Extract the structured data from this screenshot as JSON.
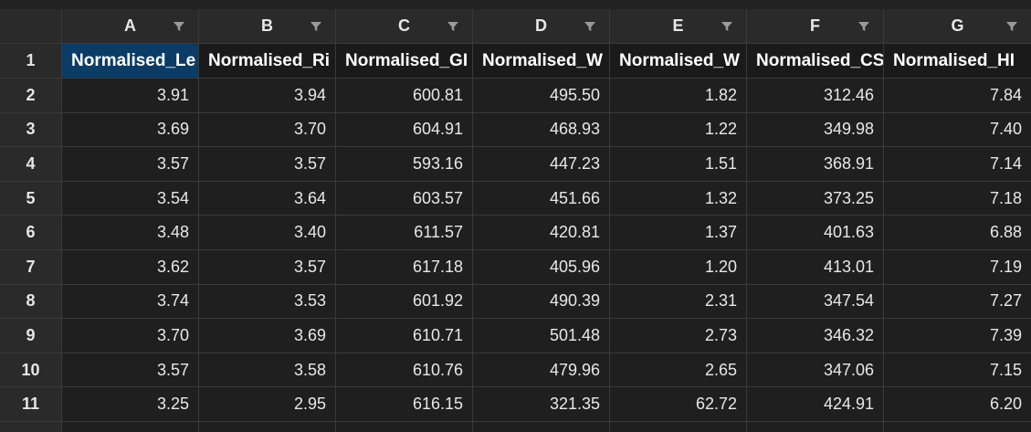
{
  "columns": [
    {
      "letter": "A",
      "header": "Normalised_Le"
    },
    {
      "letter": "B",
      "header": "Normalised_Ri"
    },
    {
      "letter": "C",
      "header": "Normalised_GI"
    },
    {
      "letter": "D",
      "header": "Normalised_W"
    },
    {
      "letter": "E",
      "header": "Normalised_W"
    },
    {
      "letter": "F",
      "header": "Normalised_CS"
    },
    {
      "letter": "G",
      "header": "Normalised_HI"
    }
  ],
  "header_row_number": "1",
  "rows": [
    {
      "num": "2",
      "values": [
        "3.91",
        "3.94",
        "600.81",
        "495.50",
        "1.82",
        "312.46",
        "7.84"
      ]
    },
    {
      "num": "3",
      "values": [
        "3.69",
        "3.70",
        "604.91",
        "468.93",
        "1.22",
        "349.98",
        "7.40"
      ]
    },
    {
      "num": "4",
      "values": [
        "3.57",
        "3.57",
        "593.16",
        "447.23",
        "1.51",
        "368.91",
        "7.14"
      ]
    },
    {
      "num": "5",
      "values": [
        "3.54",
        "3.64",
        "603.57",
        "451.66",
        "1.32",
        "373.25",
        "7.18"
      ]
    },
    {
      "num": "6",
      "values": [
        "3.48",
        "3.40",
        "611.57",
        "420.81",
        "1.37",
        "401.63",
        "6.88"
      ]
    },
    {
      "num": "7",
      "values": [
        "3.62",
        "3.57",
        "617.18",
        "405.96",
        "1.20",
        "413.01",
        "7.19"
      ]
    },
    {
      "num": "8",
      "values": [
        "3.74",
        "3.53",
        "601.92",
        "490.39",
        "2.31",
        "347.54",
        "7.27"
      ]
    },
    {
      "num": "9",
      "values": [
        "3.70",
        "3.69",
        "610.71",
        "501.48",
        "2.73",
        "346.32",
        "7.39"
      ]
    },
    {
      "num": "10",
      "values": [
        "3.57",
        "3.58",
        "610.76",
        "479.96",
        "2.65",
        "347.06",
        "7.15"
      ]
    },
    {
      "num": "11",
      "values": [
        "3.25",
        "2.95",
        "616.15",
        "321.35",
        "62.72",
        "424.91",
        "6.20"
      ]
    }
  ],
  "active_cell": "A1",
  "colors": {
    "background": "#1f1f1f",
    "header_bg": "#2a2a2a",
    "active_cell_bg": "#0a3c66",
    "gridline": "#3a3a3a"
  },
  "icons": {
    "filter": "filter-icon"
  }
}
